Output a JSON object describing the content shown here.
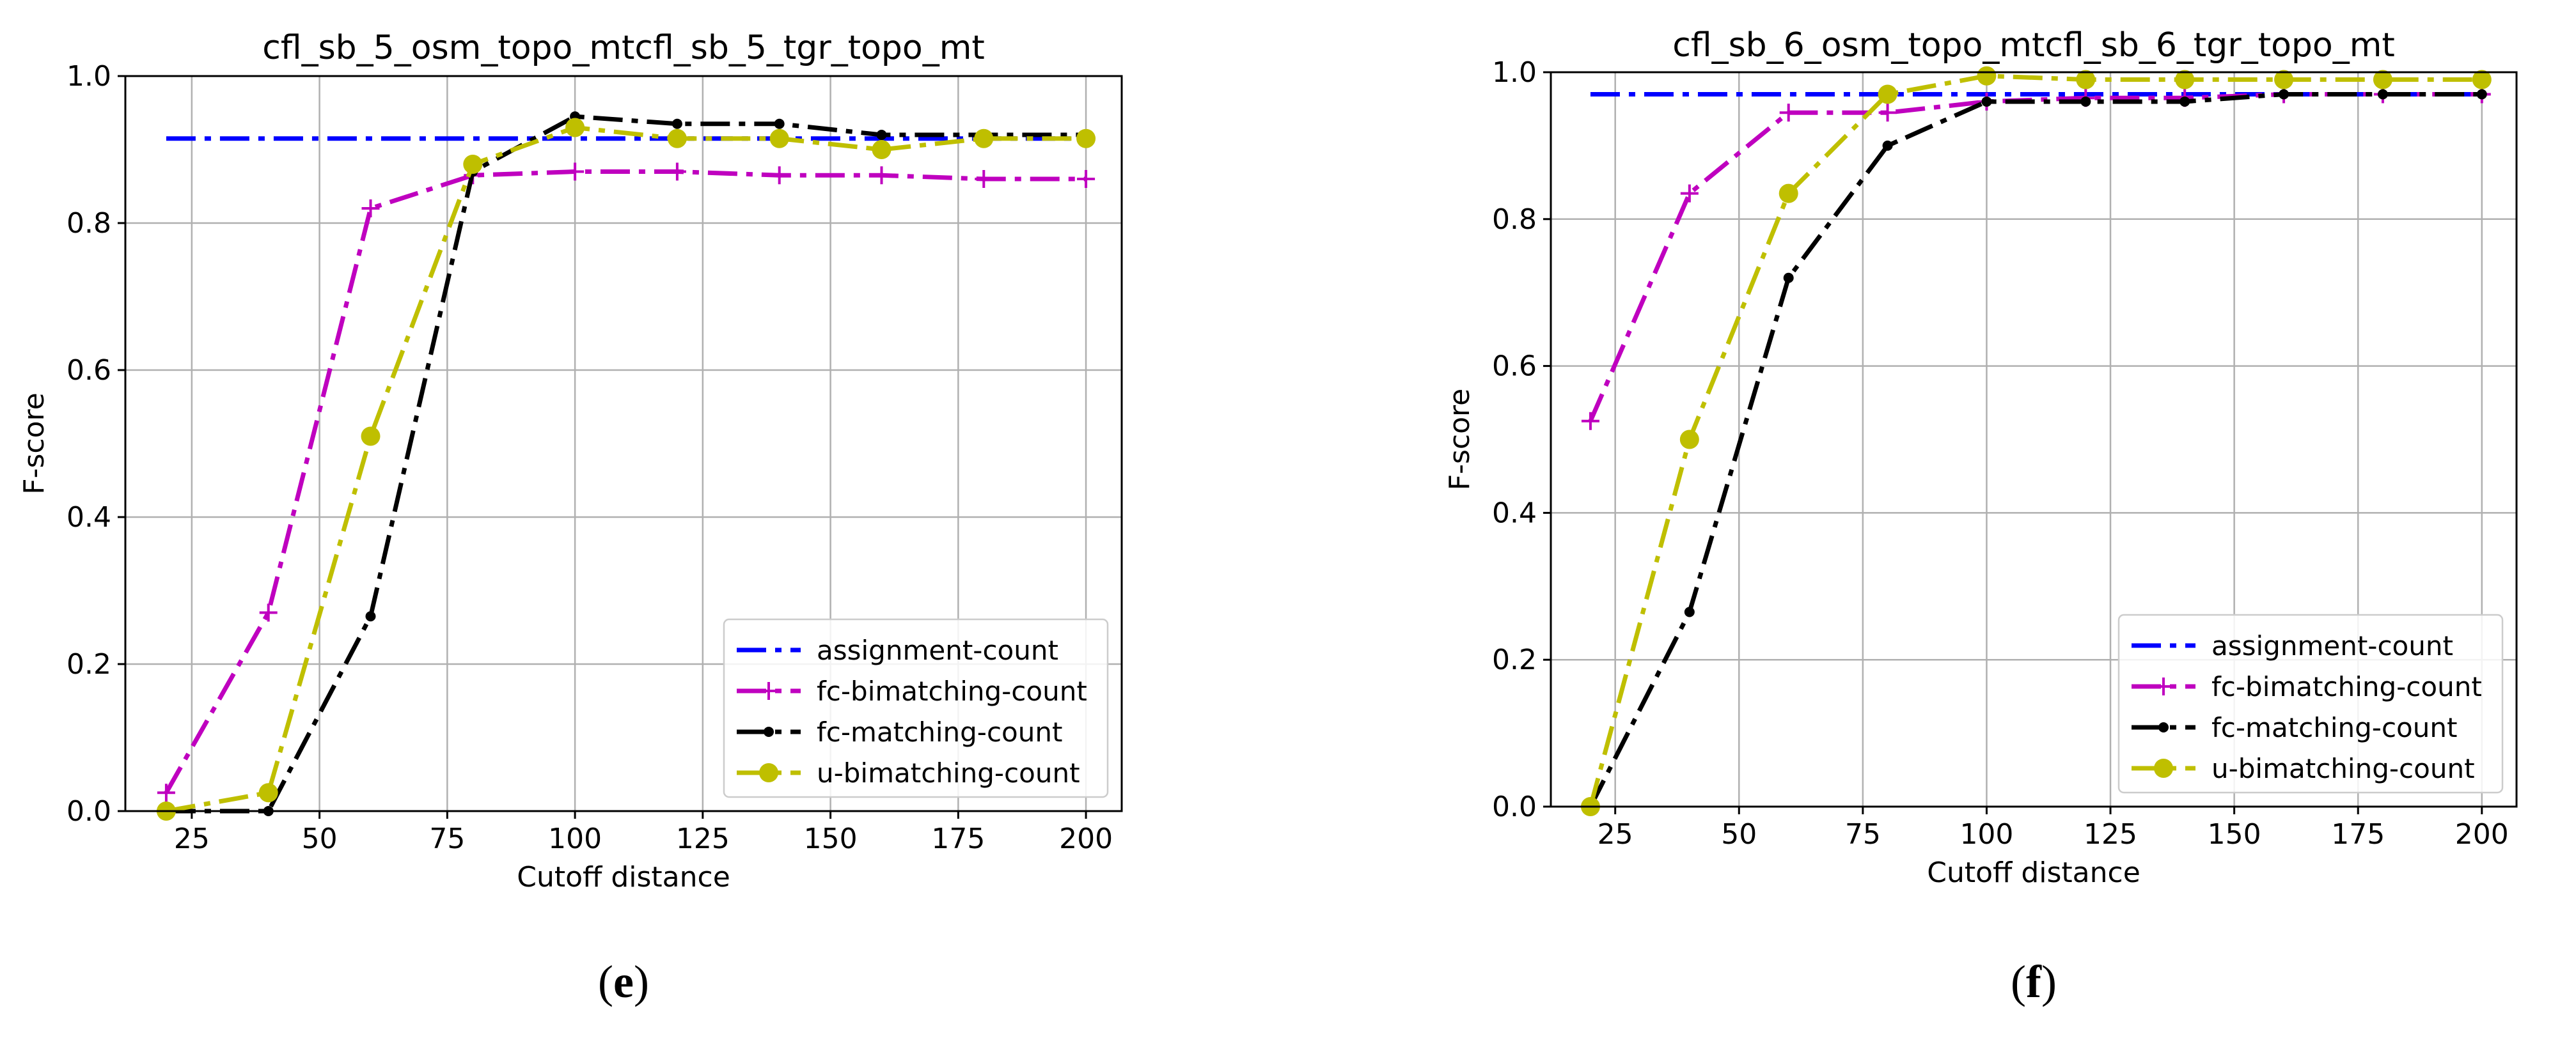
{
  "chart_data": [
    {
      "type": "line",
      "title": "cfl_sb_5_osm_topo_mtcfl_sb_5_tgr_topo_mt",
      "xlabel": "Cutoff distance",
      "ylabel": "F-score",
      "xlim": [
        12,
        207
      ],
      "ylim": [
        0,
        1.0
      ],
      "xticks": [
        25,
        50,
        75,
        100,
        125,
        150,
        175,
        200
      ],
      "yticks": [
        0.0,
        0.2,
        0.4,
        0.6,
        0.8,
        1.0
      ],
      "grid": true,
      "legend_position": "lower-right",
      "caption": "e",
      "x": [
        20,
        40,
        60,
        80,
        100,
        120,
        140,
        160,
        180,
        200
      ],
      "series": [
        {
          "name": "assignment-count",
          "color": "#0000ff",
          "marker": "none",
          "values": [
            0.915,
            0.915,
            0.915,
            0.915,
            0.915,
            0.915,
            0.915,
            0.915,
            0.915,
            0.915
          ]
        },
        {
          "name": "fc-bimatching-count",
          "color": "#bf00bf",
          "marker": "plus",
          "values": [
            0.025,
            0.27,
            0.82,
            0.865,
            0.87,
            0.87,
            0.865,
            0.865,
            0.86,
            0.86
          ]
        },
        {
          "name": "fc-matching-count",
          "color": "#000000",
          "marker": "dot",
          "values": [
            0.0,
            0.0,
            0.265,
            0.87,
            0.945,
            0.935,
            0.935,
            0.92,
            0.92,
            0.92
          ]
        },
        {
          "name": "u-bimatching-count",
          "color": "#bfbf00",
          "marker": "circle",
          "values": [
            0.0,
            0.025,
            0.51,
            0.88,
            0.93,
            0.915,
            0.915,
            0.9,
            0.915,
            0.915
          ]
        }
      ]
    },
    {
      "type": "line",
      "title": "cfl_sb_6_osm_topo_mtcfl_sb_6_tgr_topo_mt",
      "xlabel": "Cutoff distance",
      "ylabel": "F-score",
      "xlim": [
        12,
        207
      ],
      "ylim": [
        0,
        1.0
      ],
      "xticks": [
        25,
        50,
        75,
        100,
        125,
        150,
        175,
        200
      ],
      "yticks": [
        0.0,
        0.2,
        0.4,
        0.6,
        0.8,
        1.0
      ],
      "grid": true,
      "legend_position": "lower-right",
      "caption": "f",
      "x": [
        20,
        40,
        60,
        80,
        100,
        120,
        140,
        160,
        180,
        200
      ],
      "series": [
        {
          "name": "assignment-count",
          "color": "#0000ff",
          "marker": "none",
          "values": [
            0.97,
            0.97,
            0.97,
            0.97,
            0.97,
            0.97,
            0.97,
            0.97,
            0.97,
            0.97
          ]
        },
        {
          "name": "fc-bimatching-count",
          "color": "#bf00bf",
          "marker": "plus",
          "values": [
            0.525,
            0.835,
            0.945,
            0.945,
            0.96,
            0.965,
            0.965,
            0.97,
            0.97,
            0.97
          ]
        },
        {
          "name": "fc-matching-count",
          "color": "#000000",
          "marker": "dot",
          "values": [
            0.0,
            0.265,
            0.72,
            0.9,
            0.96,
            0.96,
            0.96,
            0.97,
            0.97,
            0.97
          ]
        },
        {
          "name": "u-bimatching-count",
          "color": "#bfbf00",
          "marker": "circle",
          "values": [
            0.0,
            0.5,
            0.835,
            0.97,
            0.995,
            0.99,
            0.99,
            0.99,
            0.99,
            0.99
          ]
        }
      ]
    }
  ]
}
